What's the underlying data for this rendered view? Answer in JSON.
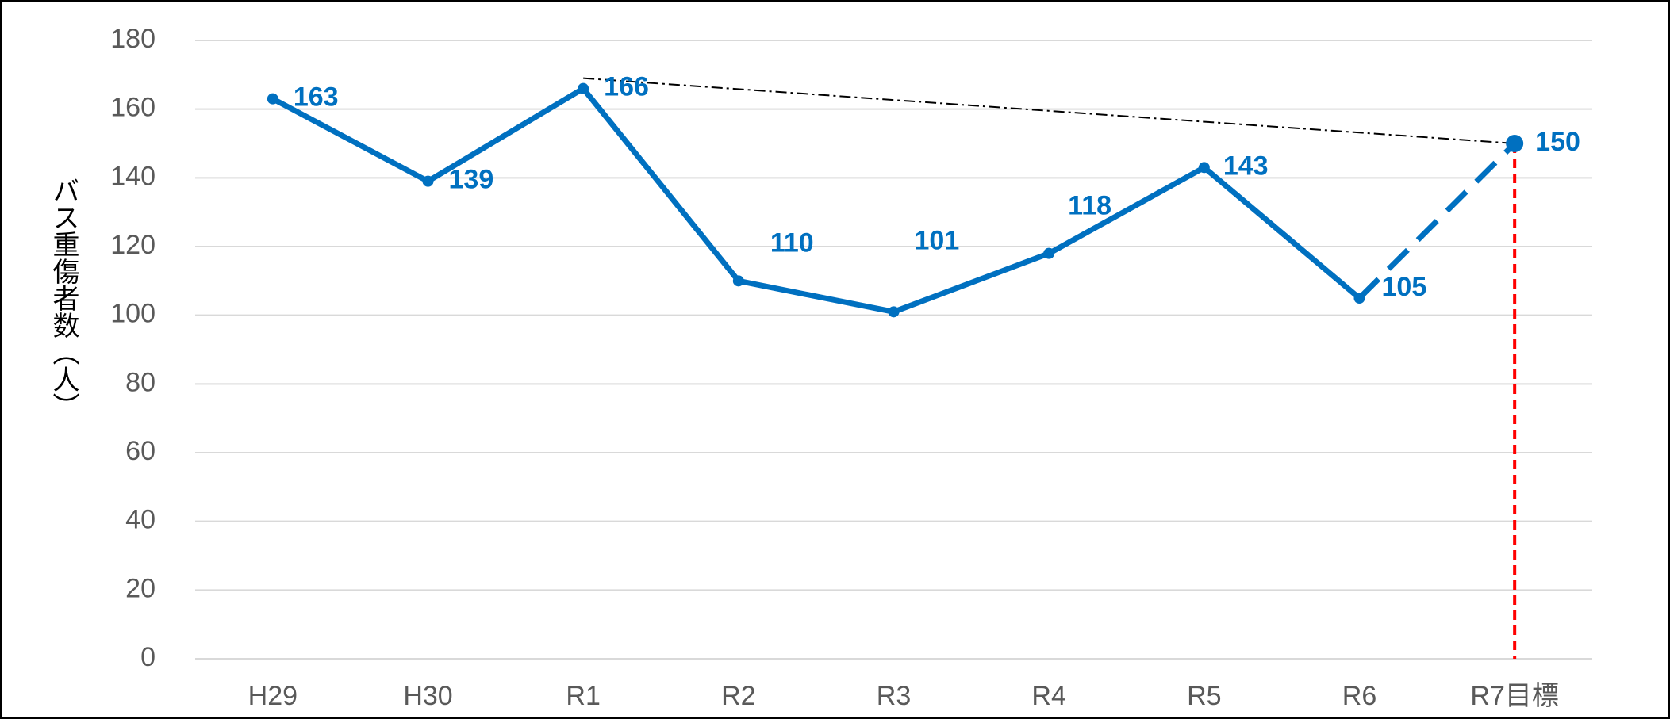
{
  "chart_data": {
    "type": "line",
    "y_label": "バス重傷者数（人）",
    "categories": [
      "H29",
      "H30",
      "R1",
      "R2",
      "R3",
      "R4",
      "R5",
      "R6",
      "R7目標"
    ],
    "series": [
      {
        "color": "#0070c0",
        "style": "solid",
        "values": [
          163,
          139,
          166,
          110,
          101,
          118,
          143,
          105,
          null
        ]
      },
      {
        "color": "#0070c0",
        "style": "dashed",
        "values": [
          null,
          null,
          null,
          null,
          null,
          null,
          null,
          105,
          150
        ]
      }
    ],
    "reference_line": {
      "categories": [
        "R1",
        "R7目標"
      ],
      "values": [
        169,
        150
      ],
      "color": "#000000"
    },
    "target_line_color": "#ff0000",
    "ylim": [
      0,
      180
    ],
    "yticks": [
      0,
      20,
      40,
      60,
      80,
      100,
      120,
      140,
      160,
      180
    ],
    "grid": true
  }
}
